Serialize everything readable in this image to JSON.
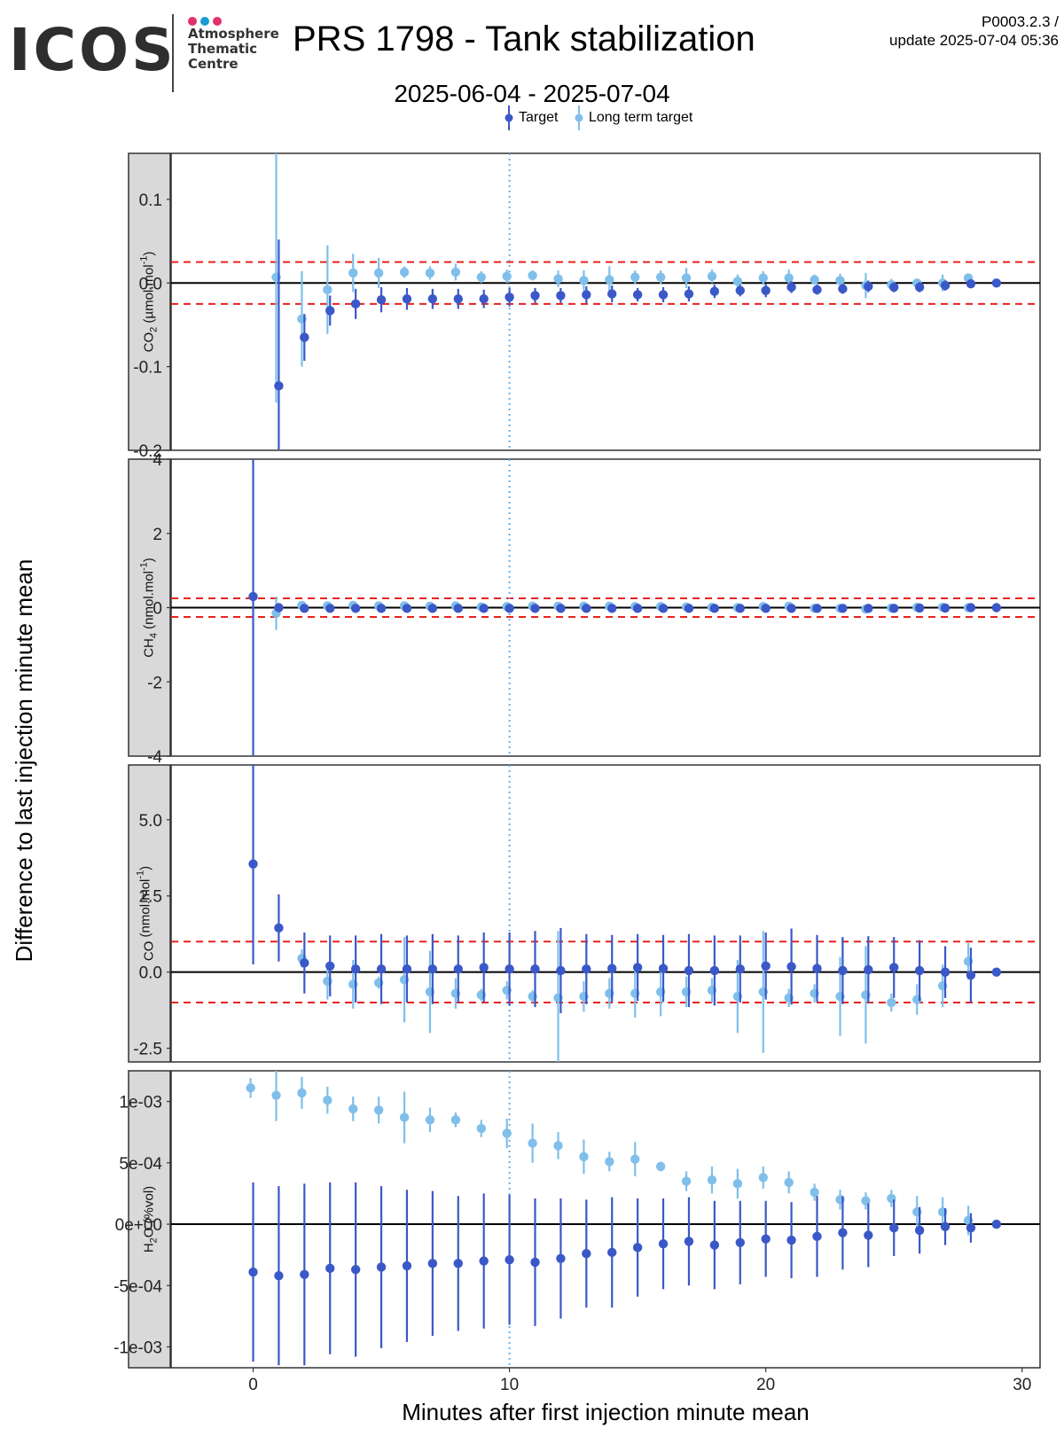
{
  "header": {
    "logo_word": "ICOS",
    "logo_sub": "Atmosphere\nThematic\nCentre",
    "logo_dot_colors": [
      "#e2306c",
      "#1a9ad6",
      "#e2306c"
    ],
    "title": "PRS 1798 - Tank stabilization",
    "subtitle": "2025-06-04 - 2025-07-04",
    "code_line1": "P0003.2.3 /",
    "code_line2": "update  2025-07-04 05:36"
  },
  "legend": {
    "target": "Target",
    "long_term": "Long term target"
  },
  "colors": {
    "target": "#3a58c8",
    "long_term": "#7fbfea",
    "threshold": "#e8221e",
    "vline": "#6aaee8",
    "strip": "#d9d9d9"
  },
  "chart_data": {
    "type": "scatter",
    "xlabel": "Minutes after first injection minute mean",
    "ylabel": "Difference to last injection minute mean",
    "xlim": [
      -3.2,
      30.7
    ],
    "xticks": [
      0,
      10,
      20,
      30
    ],
    "vline_x": 10,
    "panels": [
      {
        "strip_label": "CO2 (µmol.mol-1)",
        "strip_main": "CO",
        "strip_sub": "2",
        "strip_rest": " (µmol.mol",
        "strip_sup": "-1",
        "strip_end": ")",
        "ylim": [
          -0.2,
          0.155
        ],
        "yticks": [
          -0.2,
          -0.1,
          0.0,
          0.1
        ],
        "ytick_labels": [
          "-0.2",
          "-0.1",
          "0.0",
          "0.1"
        ],
        "threshold": 0.025,
        "series": [
          {
            "name": "Target",
            "x": [
              1,
              2,
              3,
              4,
              5,
              6,
              7,
              8,
              9,
              10,
              11,
              12,
              13,
              14,
              15,
              16,
              17,
              18,
              19,
              20,
              21,
              22,
              23,
              24,
              25,
              26,
              27,
              28,
              29
            ],
            "y": [
              -0.123,
              -0.065,
              -0.033,
              -0.025,
              -0.02,
              -0.019,
              -0.019,
              -0.019,
              -0.019,
              -0.017,
              -0.015,
              -0.015,
              -0.014,
              -0.013,
              -0.014,
              -0.014,
              -0.013,
              -0.01,
              -0.009,
              -0.009,
              -0.005,
              -0.008,
              -0.007,
              -0.004,
              -0.005,
              -0.005,
              -0.003,
              -0.001,
              0.0
            ],
            "err": [
              0.175,
              0.028,
              0.018,
              0.018,
              0.015,
              0.013,
              0.012,
              0.012,
              0.011,
              0.011,
              0.009,
              0.009,
              0.01,
              0.01,
              0.008,
              0.009,
              0.009,
              0.008,
              0.007,
              0.008,
              0.007,
              0.006,
              0.006,
              0.007,
              0.006,
              0.006,
              0.006,
              0.005,
              0.0
            ]
          },
          {
            "name": "Long term target",
            "x": [
              0.9,
              1.9,
              2.9,
              3.9,
              4.9,
              5.9,
              6.9,
              7.9,
              8.9,
              9.9,
              10.9,
              11.9,
              12.9,
              13.9,
              14.9,
              15.9,
              16.9,
              17.9,
              18.9,
              19.9,
              20.9,
              21.9,
              22.9,
              23.9,
              24.9,
              25.9,
              26.9,
              27.9
            ],
            "y": [
              0.007,
              -0.043,
              -0.008,
              0.012,
              0.012,
              0.013,
              0.012,
              0.013,
              0.007,
              0.008,
              0.009,
              0.005,
              0.003,
              0.004,
              0.007,
              0.007,
              0.006,
              0.008,
              0.002,
              0.006,
              0.006,
              0.004,
              0.003,
              -0.003,
              -0.002,
              0.0,
              0.0,
              0.006
            ],
            "err": [
              0.15,
              0.057,
              0.053,
              0.023,
              0.018,
              0.007,
              0.008,
              0.01,
              0.007,
              0.008,
              0.006,
              0.01,
              0.012,
              0.016,
              0.008,
              0.008,
              0.012,
              0.008,
              0.008,
              0.008,
              0.01,
              0.006,
              0.008,
              0.015,
              0.007,
              0.005,
              0.01,
              0.005
            ]
          }
        ]
      },
      {
        "strip_label": "CH4 (nmol.mol-1)",
        "strip_main": "CH",
        "strip_sub": "4",
        "strip_rest": " (nmol.mol",
        "strip_sup": "-1",
        "strip_end": ")",
        "ylim": [
          -4,
          4
        ],
        "yticks": [
          -4,
          -2,
          0,
          2,
          4
        ],
        "ytick_labels": [
          "-4",
          "-2",
          "0",
          "2",
          "4"
        ],
        "threshold": 0.25,
        "series": [
          {
            "name": "Target",
            "x": [
              0,
              1,
              2,
              3,
              4,
              5,
              6,
              7,
              8,
              9,
              10,
              11,
              12,
              13,
              14,
              15,
              16,
              17,
              18,
              19,
              20,
              21,
              22,
              23,
              24,
              25,
              26,
              27,
              28,
              29
            ],
            "y": [
              0.3,
              0.0,
              -0.02,
              -0.02,
              -0.02,
              -0.02,
              -0.02,
              -0.02,
              -0.02,
              -0.02,
              -0.02,
              -0.02,
              -0.02,
              -0.02,
              -0.02,
              -0.02,
              -0.02,
              -0.02,
              -0.02,
              -0.02,
              -0.02,
              -0.02,
              -0.02,
              -0.02,
              -0.02,
              -0.02,
              -0.01,
              -0.01,
              0.0,
              0.0
            ],
            "err": [
              4.5,
              0.05,
              0.05,
              0.05,
              0.05,
              0.05,
              0.05,
              0.05,
              0.05,
              0.05,
              0.05,
              0.05,
              0.05,
              0.05,
              0.05,
              0.05,
              0.05,
              0.05,
              0.05,
              0.05,
              0.05,
              0.05,
              0.05,
              0.05,
              0.05,
              0.05,
              0.05,
              0.05,
              0.05,
              0.0
            ]
          },
          {
            "name": "Long term target",
            "x": [
              0.9,
              1.9,
              2.9,
              3.9,
              4.9,
              5.9,
              6.9,
              7.9,
              8.9,
              9.9,
              10.9,
              11.9,
              12.9,
              13.9,
              14.9,
              15.9,
              16.9,
              17.9,
              18.9,
              19.9,
              20.9,
              21.9,
              22.9,
              23.9,
              24.9,
              25.9,
              26.9,
              27.9
            ],
            "y": [
              -0.15,
              0.06,
              0.05,
              0.06,
              0.05,
              0.05,
              0.04,
              0.05,
              0.02,
              0.03,
              0.04,
              0.04,
              0.04,
              0.04,
              0.03,
              0.03,
              0.02,
              0.01,
              0.0,
              0.03,
              0.04,
              -0.02,
              -0.02,
              -0.04,
              -0.01,
              0.01,
              0.01,
              0.0
            ],
            "err": [
              0.45,
              0.08,
              0.08,
              0.08,
              0.08,
              0.08,
              0.08,
              0.08,
              0.08,
              0.08,
              0.08,
              0.08,
              0.08,
              0.08,
              0.08,
              0.08,
              0.08,
              0.08,
              0.08,
              0.08,
              0.08,
              0.08,
              0.08,
              0.08,
              0.08,
              0.08,
              0.08,
              0.08
            ]
          }
        ]
      },
      {
        "strip_label": "CO (nmol.mol-1)",
        "strip_main": "CO",
        "strip_sub": "",
        "strip_rest": " (nmol.mol",
        "strip_sup": "-1",
        "strip_end": ")",
        "ylim": [
          -2.95,
          6.8
        ],
        "yticks": [
          -2.5,
          0.0,
          2.5,
          5.0
        ],
        "ytick_labels": [
          "-2.5",
          "0.0",
          "2.5",
          "5.0"
        ],
        "threshold": 1.0,
        "series": [
          {
            "name": "Target",
            "x": [
              0,
              1,
              2,
              3,
              4,
              5,
              6,
              7,
              8,
              9,
              10,
              11,
              12,
              13,
              14,
              15,
              16,
              17,
              18,
              19,
              20,
              21,
              22,
              23,
              24,
              25,
              26,
              27,
              28,
              29
            ],
            "y": [
              3.55,
              1.45,
              0.3,
              0.2,
              0.1,
              0.1,
              0.1,
              0.1,
              0.1,
              0.15,
              0.1,
              0.1,
              0.05,
              0.1,
              0.12,
              0.15,
              0.12,
              0.05,
              0.05,
              0.1,
              0.2,
              0.18,
              0.12,
              0.05,
              0.08,
              0.15,
              0.05,
              0.0,
              -0.1,
              0.0
            ],
            "err": [
              3.3,
              1.1,
              1.0,
              1.0,
              1.1,
              1.15,
              1.1,
              1.15,
              1.1,
              1.15,
              1.2,
              1.25,
              1.4,
              1.15,
              1.1,
              1.1,
              1.1,
              1.2,
              1.15,
              1.1,
              1.1,
              1.25,
              1.1,
              1.1,
              1.1,
              1.0,
              1.0,
              0.85,
              0.9,
              0.0
            ]
          },
          {
            "name": "Long term target",
            "x": [
              1.9,
              2.9,
              3.9,
              4.9,
              5.9,
              6.9,
              7.9,
              8.9,
              9.9,
              10.9,
              11.9,
              12.9,
              13.9,
              14.9,
              15.9,
              16.9,
              17.9,
              18.9,
              19.9,
              20.9,
              21.9,
              22.9,
              23.9,
              24.9,
              25.9,
              26.9,
              27.9
            ],
            "y": [
              0.45,
              -0.3,
              -0.4,
              -0.35,
              -0.25,
              -0.65,
              -0.7,
              -0.75,
              -0.6,
              -0.8,
              -0.85,
              -0.8,
              -0.7,
              -0.7,
              -0.65,
              -0.65,
              -0.6,
              -0.8,
              -0.65,
              -0.85,
              -0.7,
              -0.8,
              -0.75,
              -1.0,
              -0.9,
              -0.45,
              0.35
            ],
            "err": [
              0.3,
              0.6,
              0.8,
              0.2,
              1.4,
              1.35,
              0.5,
              0.2,
              0.3,
              0.2,
              2.2,
              0.5,
              0.5,
              0.8,
              0.8,
              0.5,
              0.4,
              1.2,
              2.0,
              0.3,
              0.3,
              1.3,
              1.6,
              0.3,
              0.5,
              0.7,
              0.6
            ]
          }
        ]
      },
      {
        "strip_label": "H2O (%vol)",
        "strip_main": "H",
        "strip_sub": "2",
        "strip_rest": "O (%vol)",
        "strip_sup": "",
        "strip_end": "",
        "ylim": [
          -0.00117,
          0.00125
        ],
        "yticks": [
          -0.001,
          -0.0005,
          0,
          0.0005,
          0.001
        ],
        "ytick_labels": [
          "-1e-03",
          "-5e-04",
          "0e+00",
          "5e-04",
          "1e-03"
        ],
        "threshold": null,
        "series": [
          {
            "name": "Target",
            "x": [
              0,
              1,
              2,
              3,
              4,
              5,
              6,
              7,
              8,
              9,
              10,
              11,
              12,
              13,
              14,
              15,
              16,
              17,
              18,
              19,
              20,
              21,
              22,
              23,
              24,
              25,
              26,
              27,
              28,
              29
            ],
            "y": [
              -0.00039,
              -0.00042,
              -0.00041,
              -0.00036,
              -0.00037,
              -0.00035,
              -0.00034,
              -0.00032,
              -0.00032,
              -0.0003,
              -0.00029,
              -0.00031,
              -0.00028,
              -0.00024,
              -0.00023,
              -0.00019,
              -0.00016,
              -0.00014,
              -0.00017,
              -0.00015,
              -0.00012,
              -0.00013,
              -0.0001,
              -7e-05,
              -9e-05,
              -3e-05,
              -5e-05,
              -2e-05,
              -3e-05,
              0.0
            ],
            "err": [
              0.00073,
              0.00073,
              0.00074,
              0.0007,
              0.00071,
              0.00066,
              0.00062,
              0.00059,
              0.00055,
              0.00055,
              0.00053,
              0.00052,
              0.00049,
              0.00044,
              0.00045,
              0.0004,
              0.00037,
              0.00036,
              0.00036,
              0.00034,
              0.00031,
              0.00031,
              0.00033,
              0.0003,
              0.00026,
              0.00023,
              0.00019,
              0.00015,
              0.00012,
              0.0
            ]
          },
          {
            "name": "Long term target",
            "x": [
              -0.1,
              0.9,
              1.9,
              2.9,
              3.9,
              4.9,
              5.9,
              6.9,
              7.9,
              8.9,
              9.9,
              10.9,
              11.9,
              12.9,
              13.9,
              14.9,
              15.9,
              16.9,
              17.9,
              18.9,
              19.9,
              20.9,
              21.9,
              22.9,
              23.9,
              24.9,
              25.9,
              26.9,
              27.9
            ],
            "y": [
              0.00111,
              0.00105,
              0.00107,
              0.00101,
              0.00094,
              0.00093,
              0.00087,
              0.00085,
              0.00085,
              0.00078,
              0.00074,
              0.00066,
              0.00064,
              0.00055,
              0.00051,
              0.00053,
              0.00047,
              0.00035,
              0.00036,
              0.00033,
              0.00038,
              0.00034,
              0.00026,
              0.0002,
              0.00019,
              0.00021,
              0.0001,
              0.0001,
              3e-05
            ],
            "err": [
              8e-05,
              0.00021,
              0.00013,
              0.00011,
              0.0001,
              0.00011,
              0.00021,
              0.0001,
              6e-05,
              7e-05,
              0.00012,
              0.00016,
              0.00011,
              0.00014,
              8e-05,
              0.00014,
              4e-05,
              8e-05,
              0.00011,
              0.00012,
              9e-05,
              9e-05,
              7e-05,
              8e-05,
              7e-05,
              7e-05,
              0.00013,
              0.00012,
              0.00012
            ]
          }
        ]
      }
    ]
  }
}
